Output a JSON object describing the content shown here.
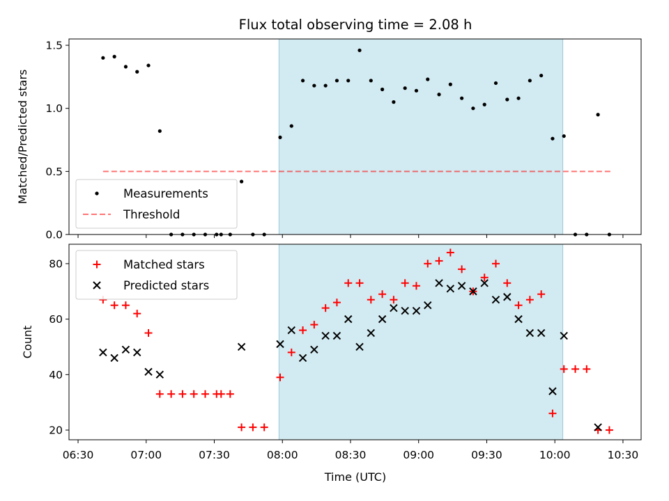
{
  "chart_data": {
    "type": "scatter",
    "title": "Flux total observing time = 2.08 h",
    "xlabel": "Time (UTC)",
    "x_axis": {
      "range_minutes": [
        386,
        638
      ],
      "tick_minutes": [
        390,
        420,
        450,
        480,
        510,
        540,
        570,
        600,
        630
      ],
      "tick_labels": [
        "06:30",
        "07:00",
        "07:30",
        "08:00",
        "08:30",
        "09:00",
        "09:30",
        "10:00",
        "10:30"
      ]
    },
    "observing_window_minutes": [
      478.5,
      603.5
    ],
    "window_color": "#add8e6",
    "panels": [
      {
        "id": "ratio",
        "ylabel": "Matched/Predicted stars",
        "ylim": [
          0,
          1.55
        ],
        "yticks": [
          0,
          0.5,
          1,
          1.5
        ],
        "ytick_labels": [
          "0.0",
          "0.5",
          "1.0",
          "1.5"
        ],
        "legend_placement": "lower-left",
        "threshold": {
          "name": "Threshold",
          "value": 0.5,
          "x_minutes": [
            401,
            625
          ],
          "color": "#ff0000"
        },
        "series": [
          {
            "name": "Measurements",
            "marker": "dot",
            "color": "#000000",
            "points": [
              [
                401,
                1.4
              ],
              [
                406,
                1.41
              ],
              [
                411,
                1.33
              ],
              [
                416,
                1.29
              ],
              [
                421,
                1.34
              ],
              [
                426,
                0.82
              ],
              [
                431,
                0
              ],
              [
                436,
                0
              ],
              [
                441,
                0
              ],
              [
                446,
                0
              ],
              [
                451,
                0
              ],
              [
                453,
                0
              ],
              [
                457,
                0
              ],
              [
                462,
                0.42
              ],
              [
                467,
                0
              ],
              [
                472,
                0
              ],
              [
                479,
                0.77
              ],
              [
                484,
                0.86
              ],
              [
                489,
                1.22
              ],
              [
                494,
                1.18
              ],
              [
                499,
                1.18
              ],
              [
                504,
                1.22
              ],
              [
                509,
                1.22
              ],
              [
                514,
                1.46
              ],
              [
                519,
                1.22
              ],
              [
                524,
                1.15
              ],
              [
                529,
                1.05
              ],
              [
                534,
                1.16
              ],
              [
                539,
                1.14
              ],
              [
                544,
                1.23
              ],
              [
                549,
                1.11
              ],
              [
                554,
                1.19
              ],
              [
                559,
                1.08
              ],
              [
                564,
                1
              ],
              [
                569,
                1.03
              ],
              [
                574,
                1.2
              ],
              [
                579,
                1.07
              ],
              [
                584,
                1.08
              ],
              [
                589,
                1.22
              ],
              [
                594,
                1.26
              ],
              [
                599,
                0.76
              ],
              [
                604,
                0.78
              ],
              [
                609,
                0
              ],
              [
                614,
                0
              ],
              [
                619,
                0.95
              ],
              [
                624,
                0
              ]
            ]
          }
        ]
      },
      {
        "id": "counts",
        "ylabel": "Count",
        "ylim": [
          16.5,
          87
        ],
        "yticks": [
          20,
          40,
          60,
          80
        ],
        "ytick_labels": [
          "20",
          "40",
          "60",
          "80"
        ],
        "legend_placement": "upper-left",
        "series": [
          {
            "name": "Matched stars",
            "marker": "plus",
            "color": "#ff0000",
            "points": [
              [
                401,
                67
              ],
              [
                406,
                65
              ],
              [
                411,
                65
              ],
              [
                416,
                62
              ],
              [
                421,
                55
              ],
              [
                426,
                33
              ],
              [
                431,
                33
              ],
              [
                436,
                33
              ],
              [
                441,
                33
              ],
              [
                446,
                33
              ],
              [
                451,
                33
              ],
              [
                453,
                33
              ],
              [
                457,
                33
              ],
              [
                462,
                21
              ],
              [
                467,
                21
              ],
              [
                472,
                21
              ],
              [
                479,
                39
              ],
              [
                484,
                48
              ],
              [
                489,
                56
              ],
              [
                494,
                58
              ],
              [
                499,
                64
              ],
              [
                504,
                66
              ],
              [
                509,
                73
              ],
              [
                514,
                73
              ],
              [
                519,
                67
              ],
              [
                524,
                69
              ],
              [
                529,
                67
              ],
              [
                534,
                73
              ],
              [
                539,
                72
              ],
              [
                544,
                80
              ],
              [
                549,
                81
              ],
              [
                554,
                84
              ],
              [
                559,
                78
              ],
              [
                564,
                70
              ],
              [
                569,
                75
              ],
              [
                574,
                80
              ],
              [
                579,
                73
              ],
              [
                584,
                65
              ],
              [
                589,
                67
              ],
              [
                594,
                69
              ],
              [
                599,
                26
              ],
              [
                604,
                42
              ],
              [
                609,
                42
              ],
              [
                614,
                42
              ],
              [
                619,
                20
              ],
              [
                624,
                20
              ]
            ]
          },
          {
            "name": "Predicted stars",
            "marker": "x",
            "color": "#000000",
            "points": [
              [
                401,
                48
              ],
              [
                406,
                46
              ],
              [
                411,
                49
              ],
              [
                416,
                48
              ],
              [
                421,
                41
              ],
              [
                426,
                40
              ],
              [
                462,
                50
              ],
              [
                479,
                51
              ],
              [
                484,
                56
              ],
              [
                489,
                46
              ],
              [
                494,
                49
              ],
              [
                499,
                54
              ],
              [
                504,
                54
              ],
              [
                509,
                60
              ],
              [
                514,
                50
              ],
              [
                519,
                55
              ],
              [
                524,
                60
              ],
              [
                529,
                64
              ],
              [
                534,
                63
              ],
              [
                539,
                63
              ],
              [
                544,
                65
              ],
              [
                549,
                73
              ],
              [
                554,
                71
              ],
              [
                559,
                72
              ],
              [
                564,
                70
              ],
              [
                569,
                73
              ],
              [
                574,
                67
              ],
              [
                579,
                68
              ],
              [
                584,
                60
              ],
              [
                589,
                55
              ],
              [
                594,
                55
              ],
              [
                599,
                34
              ],
              [
                604,
                54
              ],
              [
                619,
                21
              ]
            ]
          }
        ]
      }
    ]
  }
}
